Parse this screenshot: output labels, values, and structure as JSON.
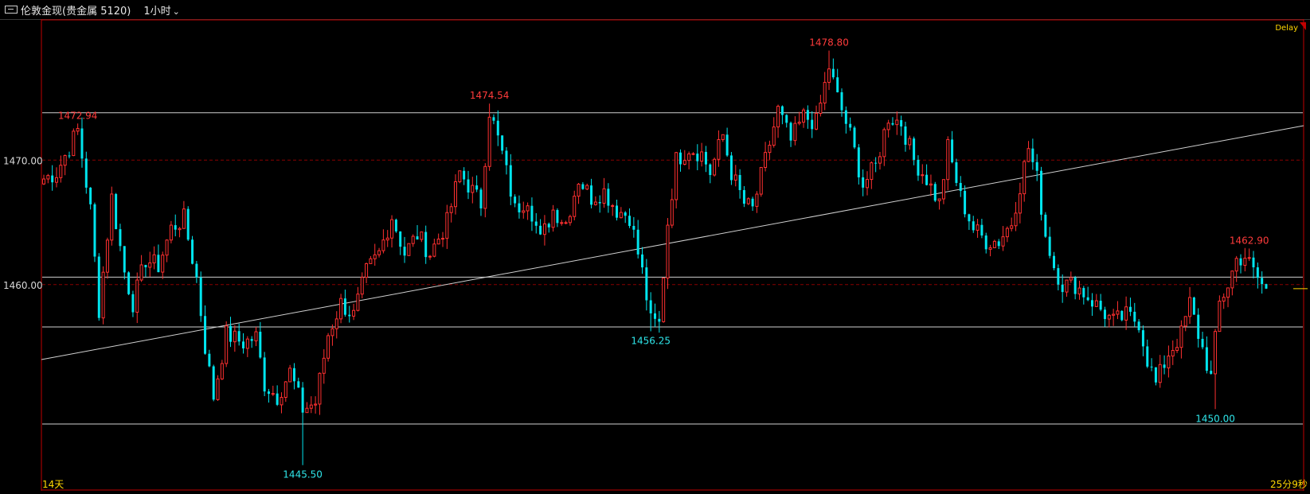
{
  "header": {
    "title": "伦敦金现(贵金属 5120)",
    "period": "1小时",
    "delay_label": "Delay"
  },
  "footer": {
    "left_label": "14天",
    "right_label": "25分9秒"
  },
  "colors": {
    "background": "#000000",
    "up": "#ff3030",
    "down": "#00e5ee",
    "grid": "#8a0000",
    "frame": "#c00000",
    "high_label": "#ff3b3b",
    "low_label": "#2ee6ea",
    "axis_text": "#d8d8d8",
    "delay": "#ffd700",
    "trendline": "#d0d0d0"
  },
  "chart_data": {
    "type": "candlestick",
    "title": "",
    "xlabel": "",
    "ylabel": "",
    "ylim": [
      1443.5,
      1481.2
    ],
    "y_ticks": [
      1460.0,
      1470.0
    ],
    "grid": "dashed-horizontal",
    "horizontal_lines": [
      1473.8,
      1460.6,
      1456.6,
      1448.8
    ],
    "annotations": [
      {
        "label": "1472.94",
        "value": 1472.94,
        "kind": "high",
        "bar": 8
      },
      {
        "label": "1474.54",
        "value": 1474.54,
        "kind": "high",
        "bar": 105
      },
      {
        "label": "1478.80",
        "value": 1478.8,
        "kind": "high",
        "bar": 185
      },
      {
        "label": "1462.90",
        "value": 1462.9,
        "kind": "high",
        "bar": 284
      },
      {
        "label": "1456.25",
        "value": 1456.25,
        "kind": "low",
        "bar": 143
      },
      {
        "label": "1445.50",
        "value": 1445.5,
        "kind": "low",
        "bar": 61
      },
      {
        "label": "1450.00",
        "value": 1450.0,
        "kind": "low",
        "bar": 276
      }
    ],
    "anchors": [
      [
        0,
        1468.5
      ],
      [
        3,
        1469.0
      ],
      [
        8,
        1472.4
      ],
      [
        11,
        1466.0
      ],
      [
        13,
        1458.0
      ],
      [
        16,
        1467.0
      ],
      [
        19,
        1461.0
      ],
      [
        21,
        1458.5
      ],
      [
        24,
        1462.0
      ],
      [
        27,
        1461.5
      ],
      [
        30,
        1464.5
      ],
      [
        33,
        1465.3
      ],
      [
        36,
        1460.5
      ],
      [
        38,
        1455.0
      ],
      [
        40,
        1451.0
      ],
      [
        43,
        1456.0
      ],
      [
        47,
        1455.3
      ],
      [
        50,
        1455.8
      ],
      [
        52,
        1452.0
      ],
      [
        55,
        1451.0
      ],
      [
        58,
        1453.0
      ],
      [
        61,
        1450.0
      ],
      [
        64,
        1450.5
      ],
      [
        67,
        1456.0
      ],
      [
        70,
        1458.5
      ],
      [
        73,
        1457.5
      ],
      [
        76,
        1461.0
      ],
      [
        79,
        1462.5
      ],
      [
        82,
        1465.5
      ],
      [
        85,
        1462.5
      ],
      [
        88,
        1464.0
      ],
      [
        91,
        1462.5
      ],
      [
        95,
        1465.0
      ],
      [
        98,
        1469.0
      ],
      [
        100,
        1468.0
      ],
      [
        103,
        1466.5
      ],
      [
        105,
        1474.0
      ],
      [
        108,
        1470.5
      ],
      [
        111,
        1466.0
      ],
      [
        114,
        1467.0
      ],
      [
        117,
        1463.5
      ],
      [
        120,
        1466.0
      ],
      [
        123,
        1465.0
      ],
      [
        126,
        1468.5
      ],
      [
        129,
        1467.0
      ],
      [
        132,
        1467.5
      ],
      [
        135,
        1466.0
      ],
      [
        138,
        1465.5
      ],
      [
        141,
        1461.0
      ],
      [
        143,
        1457.0
      ],
      [
        145,
        1456.8
      ],
      [
        147,
        1465.0
      ],
      [
        149,
        1470.0
      ],
      [
        152,
        1471.0
      ],
      [
        155,
        1470.5
      ],
      [
        157,
        1469.0
      ],
      [
        160,
        1472.0
      ],
      [
        162,
        1469.0
      ],
      [
        165,
        1466.5
      ],
      [
        167,
        1466.0
      ],
      [
        170,
        1470.0
      ],
      [
        173,
        1474.0
      ],
      [
        176,
        1471.5
      ],
      [
        179,
        1473.5
      ],
      [
        182,
        1473.0
      ],
      [
        185,
        1477.5
      ],
      [
        187,
        1475.0
      ],
      [
        190,
        1472.0
      ],
      [
        193,
        1468.0
      ],
      [
        196,
        1469.5
      ],
      [
        199,
        1473.5
      ],
      [
        202,
        1473.0
      ],
      [
        205,
        1470.0
      ],
      [
        208,
        1468.5
      ],
      [
        211,
        1466.5
      ],
      [
        213,
        1471.0
      ],
      [
        216,
        1467.0
      ],
      [
        219,
        1464.5
      ],
      [
        222,
        1463.5
      ],
      [
        225,
        1463.5
      ],
      [
        228,
        1465.0
      ],
      [
        230,
        1468.0
      ],
      [
        232,
        1471.0
      ],
      [
        234,
        1468.5
      ],
      [
        236,
        1464.0
      ],
      [
        238,
        1461.5
      ],
      [
        240,
        1460.0
      ],
      [
        243,
        1460.0
      ],
      [
        246,
        1459.0
      ],
      [
        249,
        1458.0
      ],
      [
        252,
        1457.0
      ],
      [
        255,
        1457.5
      ],
      [
        258,
        1457.0
      ],
      [
        260,
        1454.0
      ],
      [
        262,
        1452.0
      ],
      [
        265,
        1454.5
      ],
      [
        268,
        1456.0
      ],
      [
        270,
        1458.5
      ],
      [
        272,
        1456.0
      ],
      [
        275,
        1452.5
      ],
      [
        277,
        1458.5
      ],
      [
        279,
        1460.0
      ],
      [
        281,
        1462.0
      ],
      [
        283,
        1462.3
      ],
      [
        285,
        1461.0
      ],
      [
        288,
        1459.5
      ]
    ],
    "bar_count": 289
  }
}
